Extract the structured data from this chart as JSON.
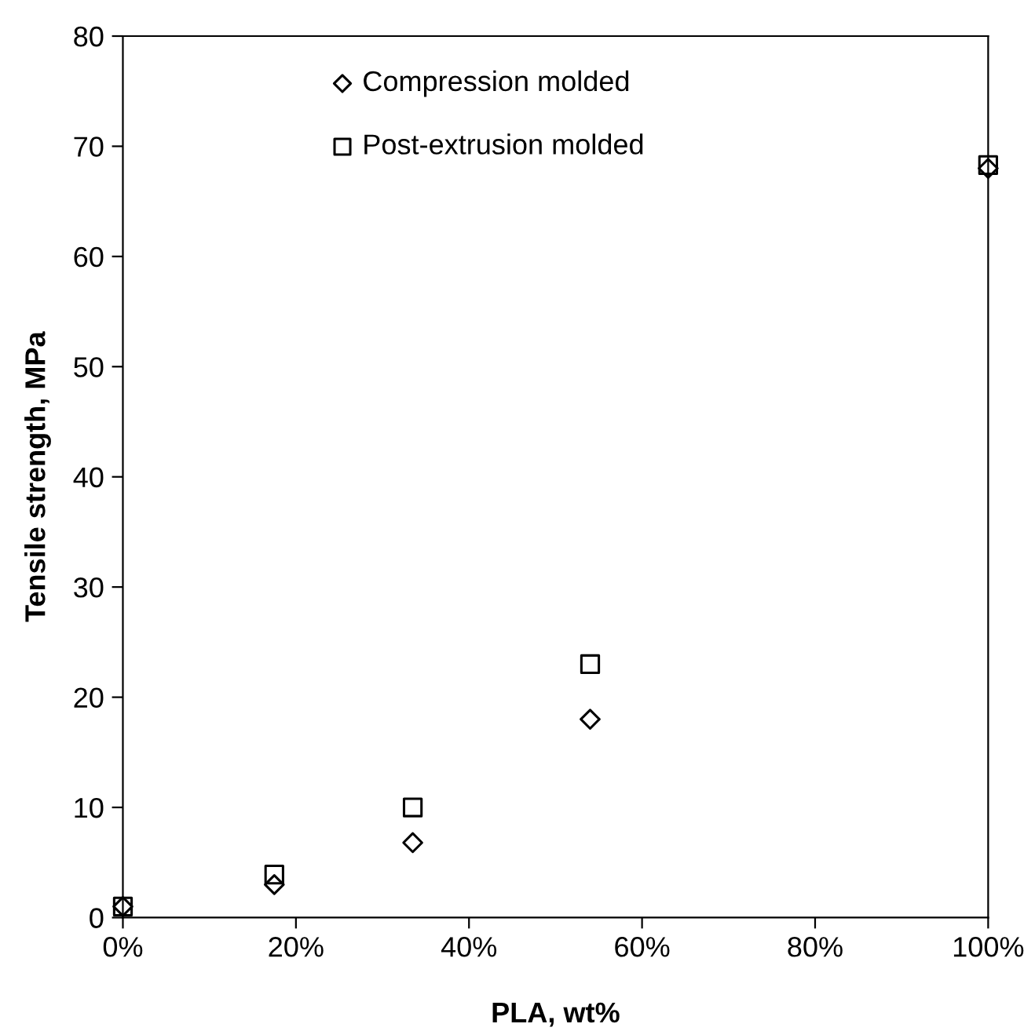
{
  "chart_data": {
    "type": "scatter",
    "xlabel": "PLA, wt%",
    "ylabel": "Tensile strength, MPa",
    "xlim": [
      0,
      100
    ],
    "xticks": [
      {
        "value": 0,
        "label": "0%"
      },
      {
        "value": 20,
        "label": "20%"
      },
      {
        "value": 40,
        "label": "40%"
      },
      {
        "value": 60,
        "label": "60%"
      },
      {
        "value": 80,
        "label": "80%"
      },
      {
        "value": 100,
        "label": "100%"
      }
    ],
    "ylim": [
      0,
      80
    ],
    "yticks": [
      0,
      10,
      20,
      30,
      40,
      50,
      60,
      70,
      80
    ],
    "grid": false,
    "legend": "top",
    "series": [
      {
        "name": "Compression molded",
        "color": "#000000",
        "marker": "diamond",
        "x": [
          0,
          17.5,
          33.5,
          54,
          100
        ],
        "values": [
          1,
          3,
          6.8,
          18,
          68
        ]
      },
      {
        "name": "Post-extrusion molded",
        "color": "#000000",
        "marker": "square",
        "x": [
          0,
          17.5,
          33.5,
          54,
          100
        ],
        "values": [
          1,
          3.9,
          10,
          23,
          68.3
        ]
      }
    ]
  }
}
